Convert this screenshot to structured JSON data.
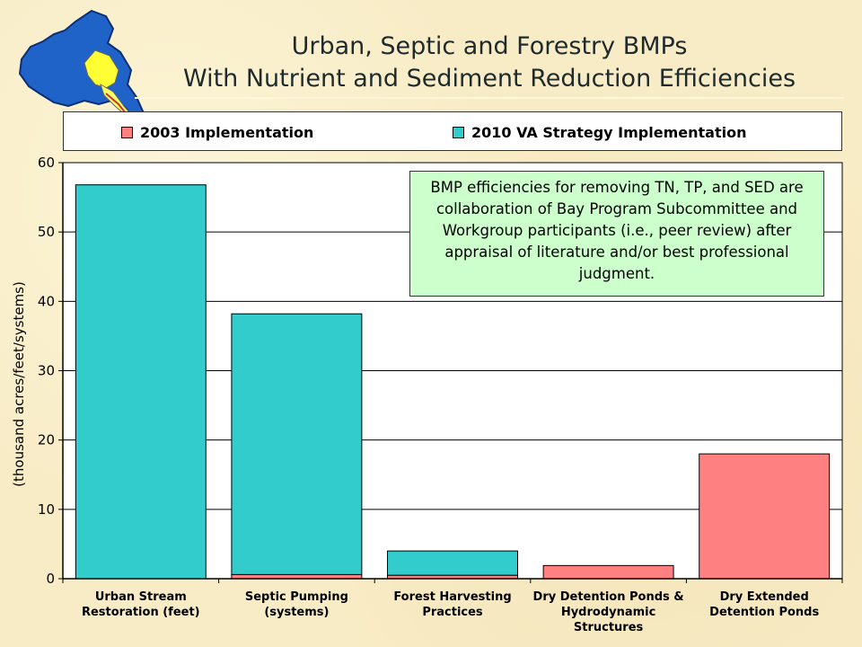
{
  "slide": {
    "title_line1": "Urban, Septic and Forestry BMPs",
    "title_line2": "With Nutrient and Sediment Reduction Efficiencies",
    "note": "BMP efficiencies for removing TN, TP, and SED are collaboration of Bay Program Subcommittee and Workgroup participants (i.e., peer review) after appraisal of literature and/or best professional judgment.",
    "logo_icon": "virginia-watershed-map-icon",
    "colors": {
      "background": "#f8ecc6",
      "note_bg": "#ccffcc"
    }
  },
  "chart_data": {
    "type": "bar",
    "stacked": true,
    "title": "",
    "xlabel": "",
    "ylabel": "(thousand acres/feet/systems)",
    "ylim": [
      0,
      60
    ],
    "yticks": [
      0,
      10,
      20,
      30,
      40,
      50,
      60
    ],
    "grid": true,
    "legend_position": "top",
    "categories": [
      "Urban Stream Restoration (feet)",
      "Septic Pumping (systems)",
      "Forest Harvesting Practices",
      "Dry Detention Ponds & Hydrodynamic Structures",
      "Dry Extended Detention Ponds"
    ],
    "category_lines": [
      [
        "Urban Stream",
        "Restoration (feet)"
      ],
      [
        "Septic Pumping",
        "(systems)"
      ],
      [
        "Forest Harvesting",
        "Practices"
      ],
      [
        "Dry Detention Ponds &",
        "Hydrodynamic",
        "Structures"
      ],
      [
        "Dry Extended",
        "Detention Ponds"
      ]
    ],
    "series": [
      {
        "name": "2003 Implementation",
        "color": "#ff8080",
        "values": [
          0,
          0.6,
          0.5,
          1.9,
          18.0
        ]
      },
      {
        "name": "2010 VA Strategy Implementation",
        "color": "#33cccc",
        "values": [
          56.8,
          37.6,
          3.5,
          0,
          0
        ]
      }
    ]
  }
}
